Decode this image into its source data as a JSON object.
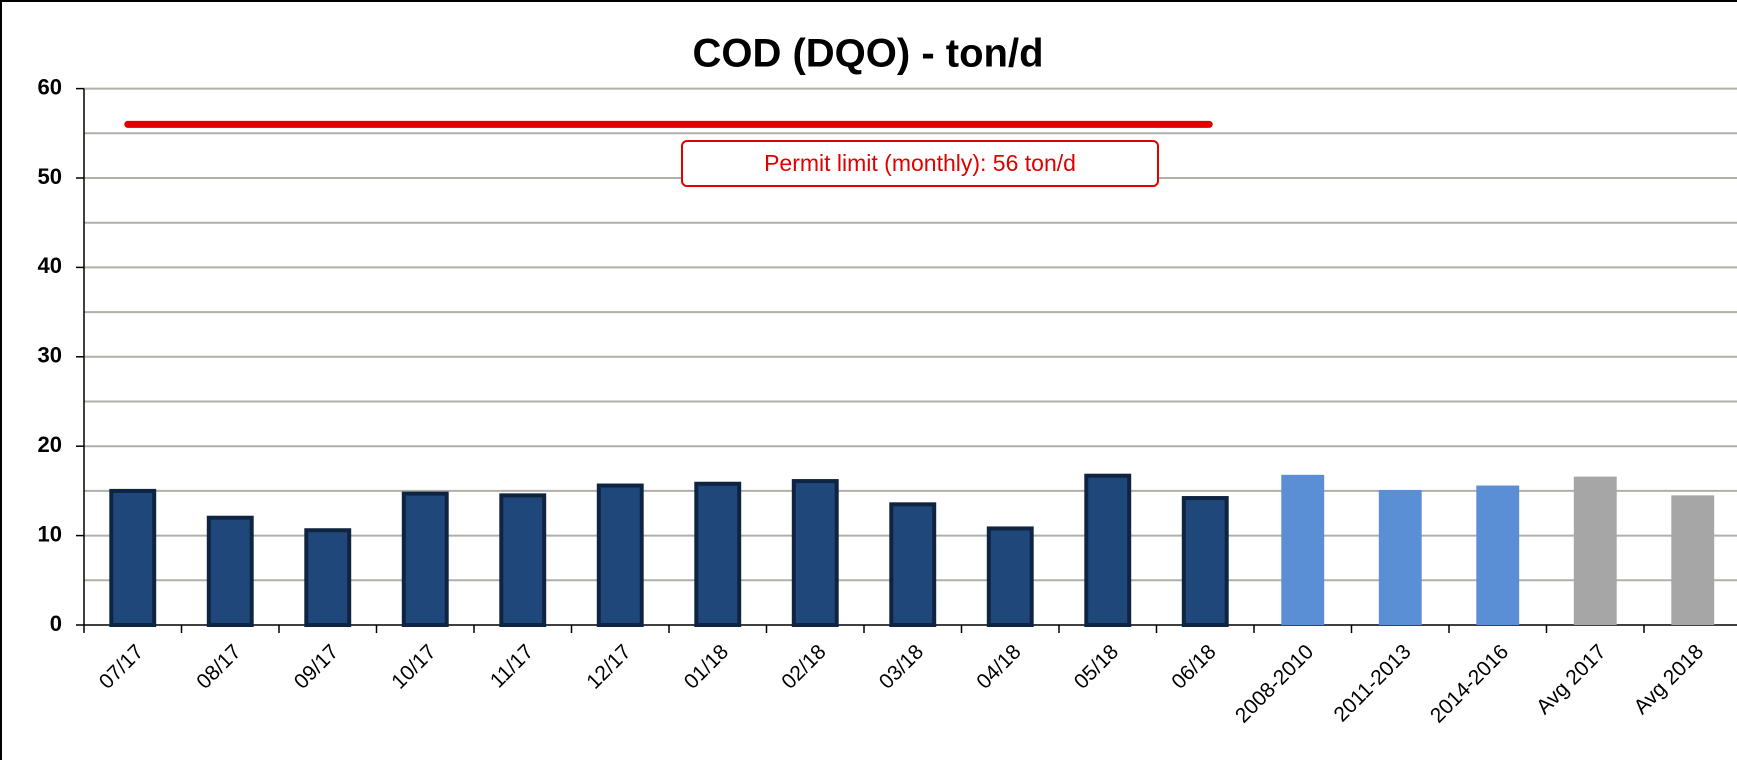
{
  "chart_data": {
    "type": "bar",
    "title": "COD (DQO) - ton/d",
    "categories": [
      "07/17",
      "08/17",
      "09/17",
      "10/17",
      "11/17",
      "12/17",
      "01/18",
      "02/18",
      "03/18",
      "04/18",
      "05/18",
      "06/18",
      "2008-2010",
      "2011-2013",
      "2014-2016",
      "Avg 2017",
      "Avg 2018"
    ],
    "values": [
      15,
      12,
      10.6,
      14.7,
      14.5,
      15.6,
      15.8,
      16.1,
      13.5,
      10.8,
      16.7,
      14.2,
      16.8,
      15.1,
      15.6,
      16.6,
      14.5
    ],
    "colors": [
      "#1f477a",
      "#1f477a",
      "#1f477a",
      "#1f477a",
      "#1f477a",
      "#1f477a",
      "#1f477a",
      "#1f477a",
      "#1f477a",
      "#1f477a",
      "#1f477a",
      "#1f477a",
      "#5a8fd6",
      "#5a8fd6",
      "#5a8fd6",
      "#a6a6a6",
      "#a6a6a6"
    ],
    "ylim": [
      0,
      60
    ],
    "yticks": [
      0,
      10,
      20,
      30,
      40,
      50,
      60
    ],
    "minor_yticks": [
      5,
      15,
      25,
      35,
      45,
      55
    ],
    "grid": true,
    "threshold": {
      "value": 56,
      "label": "Permit limit (monthly): 56 ton/d",
      "color": "#e00000"
    }
  }
}
